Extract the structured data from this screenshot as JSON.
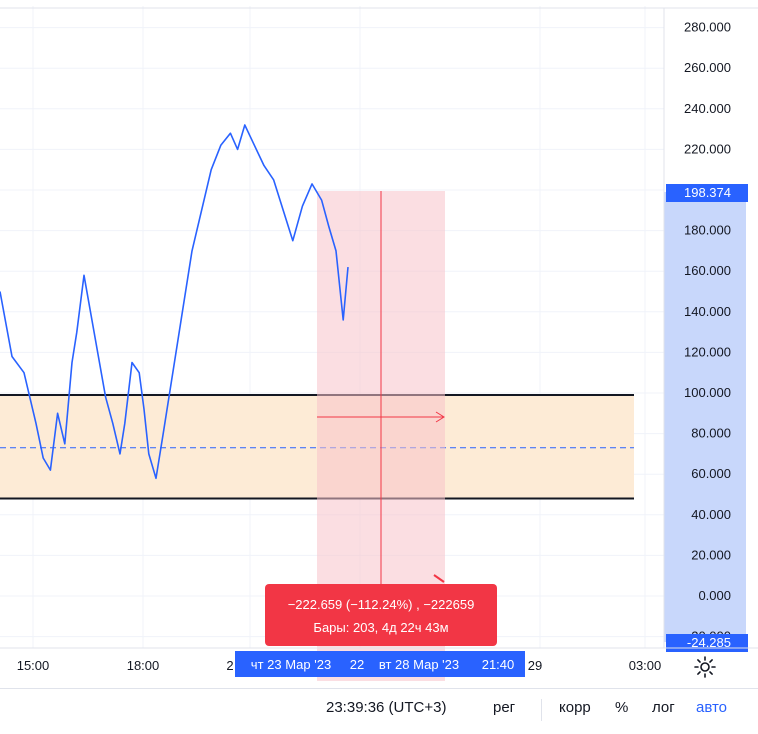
{
  "chart_data": {
    "type": "line",
    "y_ticks": [
      "280.000",
      "260.000",
      "240.000",
      "220.000",
      "200.000",
      "180.000",
      "160.000",
      "140.000",
      "120.000",
      "100.000",
      "80.000",
      "60.000",
      "40.000",
      "20.000",
      "0.000",
      "-20.000"
    ],
    "ylim": [
      -25,
      285
    ],
    "x_ticks": [
      "15:00",
      "18:00",
      "2",
      "29",
      "03:00"
    ],
    "grid": true,
    "series": [
      {
        "color": "#2962ff",
        "points": [
          [
            0.0,
            150
          ],
          [
            0.5,
            118
          ],
          [
            1.0,
            110
          ],
          [
            1.5,
            85
          ],
          [
            1.8,
            68
          ],
          [
            2.1,
            62
          ],
          [
            2.4,
            90
          ],
          [
            2.7,
            75
          ],
          [
            3.0,
            115
          ],
          [
            3.2,
            130
          ],
          [
            3.5,
            158
          ],
          [
            3.8,
            138
          ],
          [
            4.1,
            118
          ],
          [
            4.4,
            98
          ],
          [
            4.7,
            85
          ],
          [
            5.0,
            70
          ],
          [
            5.2,
            85
          ],
          [
            5.5,
            115
          ],
          [
            5.8,
            110
          ],
          [
            6.0,
            92
          ],
          [
            6.2,
            70
          ],
          [
            6.5,
            58
          ],
          [
            6.8,
            80
          ],
          [
            7.2,
            110
          ],
          [
            7.6,
            140
          ],
          [
            8.0,
            170
          ],
          [
            8.4,
            190
          ],
          [
            8.8,
            210
          ],
          [
            9.2,
            222
          ],
          [
            9.6,
            228
          ],
          [
            9.9,
            220
          ],
          [
            10.2,
            232
          ],
          [
            10.6,
            222
          ],
          [
            11.0,
            212
          ],
          [
            11.4,
            205
          ],
          [
            11.8,
            190
          ],
          [
            12.2,
            175
          ],
          [
            12.6,
            192
          ],
          [
            13.0,
            203
          ],
          [
            13.4,
            195
          ],
          [
            13.7,
            182
          ],
          [
            14.0,
            170
          ],
          [
            14.3,
            136
          ],
          [
            14.5,
            162
          ]
        ]
      }
    ],
    "price_label": "198.374",
    "bottom_label": "-24.285",
    "long_position": {
      "upper": 99,
      "entry": 73,
      "lower": 48
    },
    "measure": {
      "line1": "−222.659 (−112.24%) , −222659",
      "line2": "Бары: 203, 4д 22ч 43м"
    },
    "x_range_labels": [
      "чт 23 Мар '23",
      "22",
      "вт 28 Мар '23",
      "21:40"
    ]
  },
  "bottom_bar": {
    "time": "23:39:36 (UTC+3)",
    "reg": "рег",
    "corr": "корр",
    "percent": "%",
    "log": "лог",
    "auto": "авто"
  },
  "colors": {
    "line": "#2962ff",
    "axis_highlight": "#2962ff",
    "measure_fill": "#f7c3ca",
    "measure_label": "#f23645",
    "range_fill": "#fdebd6",
    "scale_bg": "#c8d7fb"
  }
}
